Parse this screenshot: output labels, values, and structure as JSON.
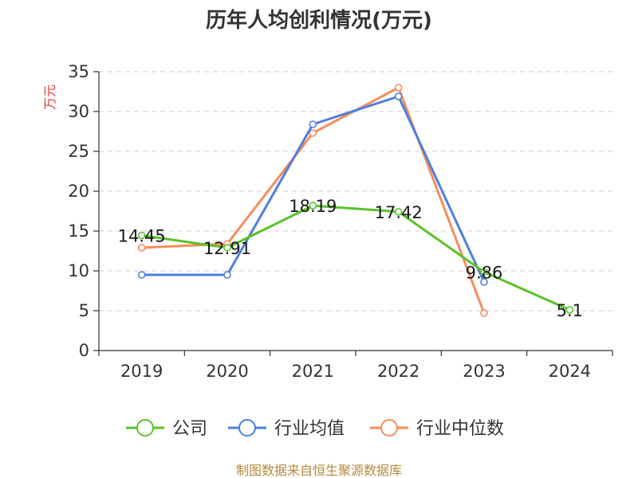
{
  "chart_data": {
    "type": "line",
    "title": "历年人均创利情况(万元)",
    "ylabel": "万元",
    "categories": [
      "2019",
      "2020",
      "2021",
      "2022",
      "2023",
      "2024"
    ],
    "ylim": [
      0,
      35
    ],
    "yticks": [
      0,
      5,
      10,
      15,
      20,
      25,
      30,
      35
    ],
    "grid": true,
    "legend_position": "bottom",
    "series": [
      {
        "name": "公司",
        "color": "#5cc22a",
        "values": [
          14.45,
          12.91,
          18.19,
          17.42,
          9.86,
          5.1
        ],
        "labels": [
          "14.45",
          "12.91",
          "18.19",
          "17.42",
          "9.86",
          "5.1"
        ]
      },
      {
        "name": "行业均值",
        "color": "#4f7fdb",
        "values": [
          9.5,
          9.5,
          28.4,
          31.9,
          8.6,
          null
        ]
      },
      {
        "name": "行业中位数",
        "color": "#f58d5c",
        "values": [
          12.9,
          13.4,
          27.3,
          33.0,
          4.7,
          null
        ]
      }
    ]
  },
  "source": "制图数据来自恒生聚源数据库"
}
